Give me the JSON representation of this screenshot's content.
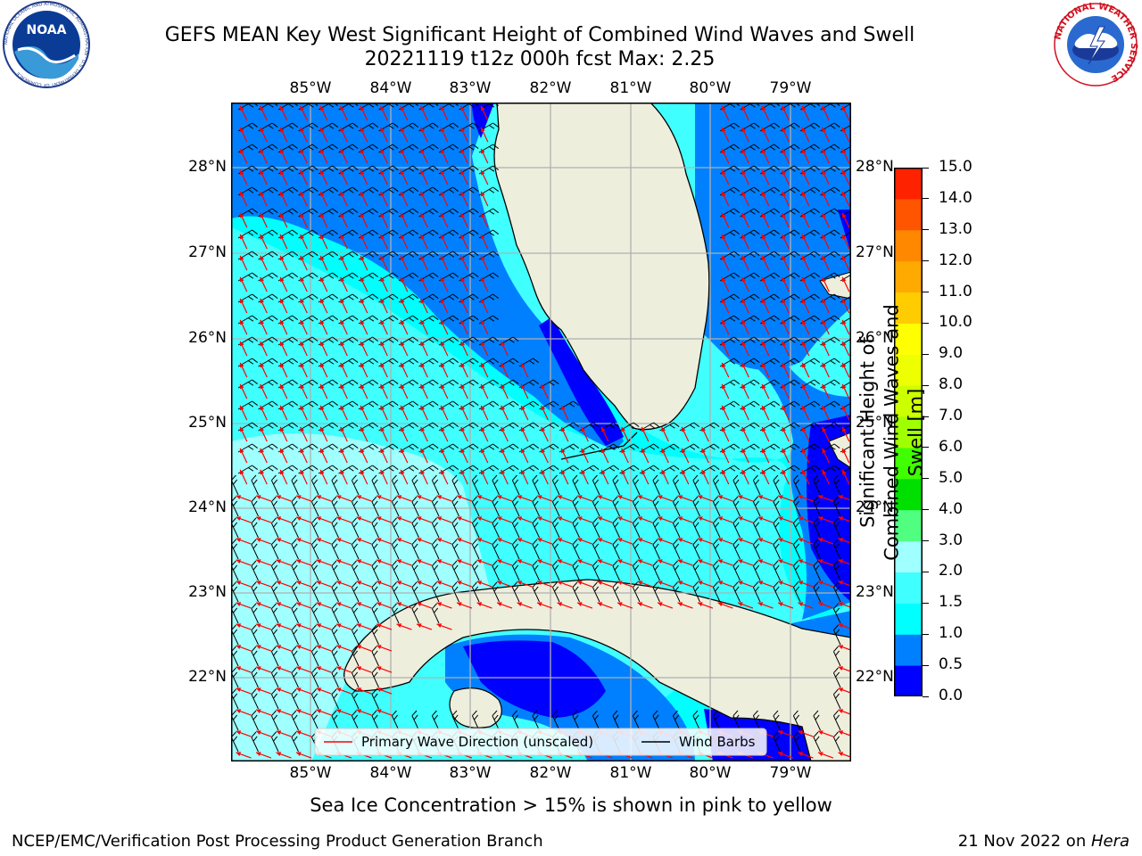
{
  "header": {
    "title_line1": "GEFS MEAN Key West Significant Height of Combined Wind Waves and Swell",
    "title_line2": "20221119 t12z 000h fcst   Max: 2.25"
  },
  "logos": {
    "noara_text": "NOAA",
    "noaa_ring_text": "NATIONAL OCEANIC AND ATMOSPHERIC ADMINISTRATION · U.S. DEPARTMENT OF COMMERCE",
    "nws_ring_text": "NATIONAL WEATHER SERVICE"
  },
  "map": {
    "lon_labels": [
      "85°W",
      "84°W",
      "83°W",
      "82°W",
      "81°W",
      "80°W",
      "79°W"
    ],
    "lat_labels": [
      "28°N",
      "27°N",
      "26°N",
      "25°N",
      "24°N",
      "23°N",
      "22°N"
    ],
    "lon_range": [
      -86.0,
      -78.3
    ],
    "lat_range": [
      21.0,
      28.75
    ],
    "legend": {
      "wave": "Primary Wave Direction (unscaled)",
      "barbs": "Wind Barbs"
    },
    "colors": {
      "land": "#eeeedd",
      "grid": "#b0b0b0",
      "arrow": "#ff0000",
      "barb": "#000000"
    }
  },
  "colorbar": {
    "label": "Significant Height of Combined Wind Waves and Swell [m]",
    "tick_labels": [
      "0.0",
      "0.5",
      "1.0",
      "1.5",
      "2.0",
      "3.0",
      "4.0",
      "5.0",
      "6.0",
      "7.0",
      "8.0",
      "9.0",
      "10.0",
      "11.0",
      "12.0",
      "13.0",
      "14.0",
      "15.0"
    ],
    "colors": [
      "#0000ff",
      "#0080ff",
      "#00ffff",
      "#40ffff",
      "#a0ffff",
      "#50ff80",
      "#00e000",
      "#40ff00",
      "#a0ff00",
      "#ccff00",
      "#eeff00",
      "#ffff00",
      "#ffcc00",
      "#ffaa00",
      "#ff8800",
      "#ff5500",
      "#ff2200"
    ]
  },
  "footer": {
    "note": "Sea Ice Concentration > 15% is shown in pink to yellow",
    "left": "NCEP/EMC/Verification Post Processing Product Generation Branch",
    "right_date": "21 Nov 2022 on ",
    "right_host": "Hera"
  }
}
